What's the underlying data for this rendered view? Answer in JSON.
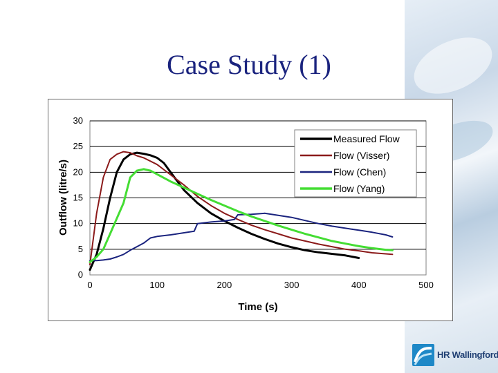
{
  "slide": {
    "title": "Case Study (1)",
    "logo_text": "HR Wallingford"
  },
  "colors": {
    "title": "#1a237e",
    "measured": "#000000",
    "visser": "#8b1a1a",
    "chen": "#1a237e",
    "yang": "#44dd33"
  },
  "chart_data": {
    "type": "line",
    "title": "",
    "xlabel": "Time (s)",
    "ylabel": "Outflow (litre/s)",
    "xlim": [
      0,
      500
    ],
    "ylim": [
      0,
      30
    ],
    "xticks": [
      0,
      100,
      200,
      300,
      400,
      500
    ],
    "yticks": [
      0,
      5,
      10,
      15,
      20,
      25,
      30
    ],
    "grid": "horizontal",
    "legend": "top-right",
    "series": [
      {
        "name": "Measured Flow",
        "color": "#000000",
        "width": 3,
        "x": [
          0,
          10,
          20,
          30,
          40,
          50,
          60,
          70,
          80,
          90,
          100,
          110,
          120,
          140,
          160,
          180,
          200,
          220,
          240,
          260,
          280,
          300,
          320,
          340,
          360,
          380,
          400
        ],
        "y": [
          1,
          4,
          9,
          15,
          20,
          22.5,
          23.5,
          23.8,
          23.6,
          23.3,
          22.8,
          21.8,
          20,
          16.5,
          14,
          12,
          10.5,
          9.2,
          8,
          7,
          6.1,
          5.4,
          4.8,
          4.4,
          4.1,
          3.8,
          3.3
        ]
      },
      {
        "name": "Flow (Visser)",
        "color": "#8b1a1a",
        "width": 2,
        "x": [
          0,
          10,
          20,
          30,
          40,
          50,
          60,
          70,
          80,
          100,
          120,
          140,
          160,
          180,
          200,
          220,
          240,
          260,
          280,
          300,
          320,
          340,
          360,
          380,
          400,
          420,
          440,
          450
        ],
        "y": [
          2,
          12,
          19,
          22.5,
          23.5,
          24,
          23.8,
          23.2,
          22.8,
          21.5,
          19.5,
          17.5,
          15.3,
          13.5,
          12,
          10.8,
          9.7,
          8.8,
          8,
          7.2,
          6.6,
          6,
          5.5,
          5,
          4.7,
          4.3,
          4.1,
          4
        ]
      },
      {
        "name": "Flow (Chen)",
        "color": "#1a237e",
        "width": 2,
        "x": [
          0,
          10,
          20,
          30,
          40,
          50,
          60,
          70,
          80,
          90,
          100,
          120,
          140,
          155,
          160,
          180,
          200,
          215,
          220,
          240,
          260,
          280,
          300,
          320,
          340,
          360,
          380,
          400,
          420,
          440,
          450
        ],
        "y": [
          2.8,
          2.8,
          2.9,
          3.1,
          3.5,
          4,
          4.8,
          5.5,
          6.2,
          7.2,
          7.5,
          7.8,
          8.2,
          8.5,
          10,
          10.3,
          10.5,
          10.8,
          11.7,
          11.8,
          12,
          11.6,
          11.2,
          10.6,
          10,
          9.5,
          9.1,
          8.7,
          8.3,
          7.8,
          7.4
        ]
      },
      {
        "name": "Flow (Yang)",
        "color": "#44dd33",
        "width": 3,
        "x": [
          0,
          10,
          20,
          30,
          40,
          50,
          60,
          70,
          80,
          90,
          100,
          120,
          140,
          160,
          180,
          200,
          220,
          240,
          260,
          280,
          300,
          320,
          340,
          360,
          380,
          400,
          420,
          440,
          450
        ],
        "y": [
          2.5,
          3.5,
          5,
          8,
          11,
          14,
          19,
          20.3,
          20.6,
          20.3,
          19.6,
          18.2,
          17,
          15.8,
          14.6,
          13.5,
          12.4,
          11.4,
          10.5,
          9.6,
          8.8,
          8,
          7.3,
          6.6,
          6.1,
          5.6,
          5.2,
          4.9,
          4.8
        ]
      }
    ]
  }
}
